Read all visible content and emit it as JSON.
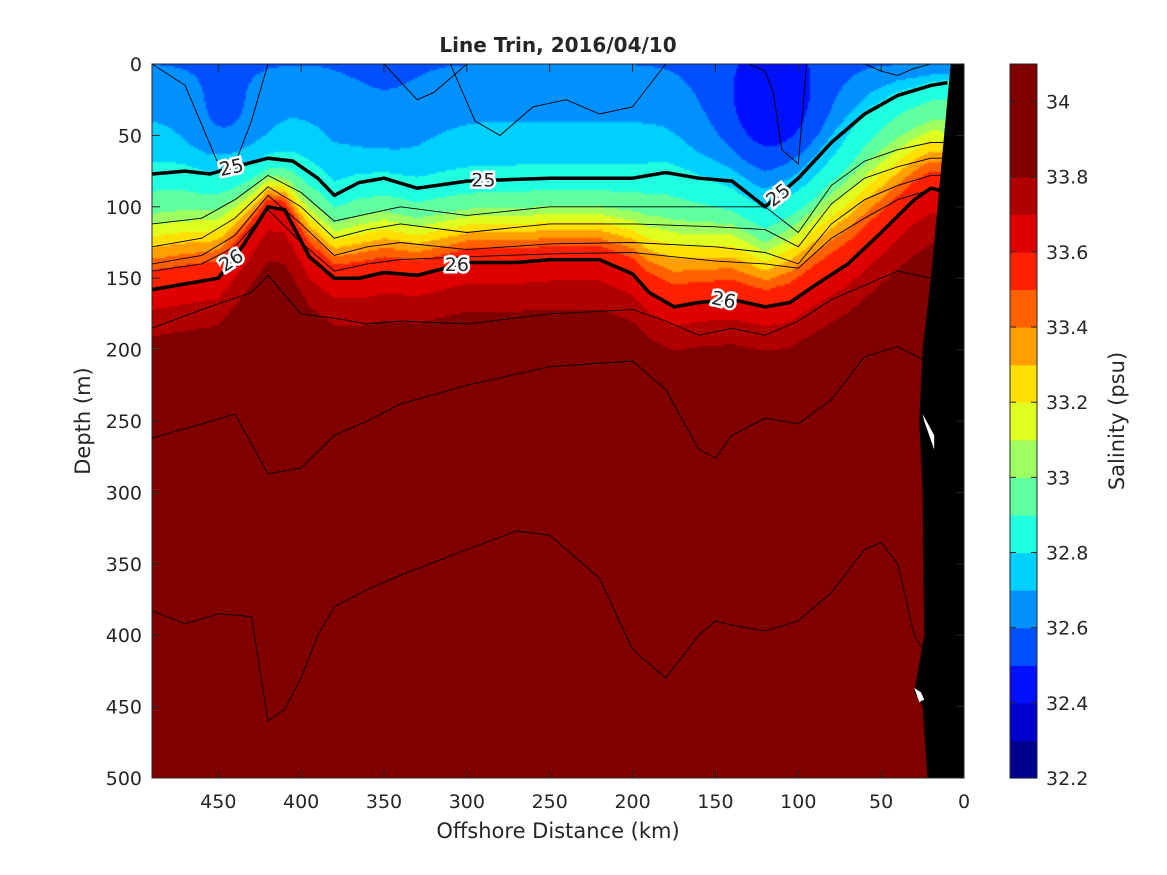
{
  "chart_data": {
    "type": "heatmap",
    "title": "Line Trin, 2016/04/10",
    "xlabel": "Offshore Distance (km)",
    "ylabel": "Depth (m)",
    "xlim": [
      490,
      0
    ],
    "ylim": [
      0,
      500
    ],
    "x_reversed": true,
    "y_reversed": true,
    "xticks": [
      450,
      400,
      350,
      300,
      250,
      200,
      150,
      100,
      50,
      0
    ],
    "yticks": [
      0,
      50,
      100,
      150,
      200,
      250,
      300,
      350,
      400,
      450,
      500
    ],
    "colorbar": {
      "label": "Salinity (psu)",
      "range": [
        32.2,
        34.1
      ],
      "ticks": [
        32.2,
        32.4,
        32.6,
        32.8,
        33,
        33.2,
        33.4,
        33.6,
        33.8,
        34
      ],
      "tick_labels": [
        "32.2",
        "32.4",
        "32.6",
        "32.8",
        "33",
        "33.2",
        "33.4",
        "33.6",
        "33.8",
        "34"
      ],
      "levels": [
        32.2,
        32.3,
        32.4,
        32.5,
        32.6,
        32.7,
        32.8,
        32.9,
        33.0,
        33.1,
        33.2,
        33.3,
        33.4,
        33.5,
        33.6,
        33.7,
        33.8,
        33.9,
        34.0,
        34.1
      ],
      "colors": [
        "#00008f",
        "#0000cf",
        "#0010ff",
        "#0050ff",
        "#0090ff",
        "#00d0ff",
        "#20ffdf",
        "#60ff9f",
        "#9fff60",
        "#dfff20",
        "#ffe000",
        "#ffa000",
        "#ff6000",
        "#ff2000",
        "#df0000",
        "#b00000",
        "#800000",
        "#800000",
        "#800000"
      ],
      "salinity_profile_depths": [
        0,
        60,
        100,
        120,
        140,
        170,
        200,
        260,
        340,
        500
      ],
      "salinity_profile_values": [
        32.6,
        32.75,
        32.95,
        33.25,
        33.55,
        33.75,
        33.88,
        33.96,
        34.02,
        34.06
      ]
    },
    "isopycnals": {
      "labeled_levels": [
        "25",
        "25",
        "25",
        "26",
        "26",
        "26"
      ],
      "sigma25": {
        "x": [
          490,
          470,
          455,
          440,
          420,
          405,
          390,
          380,
          365,
          350,
          330,
          300,
          250,
          200,
          180,
          160,
          140,
          120,
          100,
          80,
          60,
          40,
          20,
          10
        ],
        "y": [
          77,
          75,
          77,
          72,
          66,
          68,
          80,
          92,
          83,
          80,
          87,
          82,
          80,
          80,
          76,
          80,
          82,
          100,
          80,
          55,
          35,
          22,
          15,
          13
        ]
      },
      "sigma26": {
        "x": [
          490,
          465,
          450,
          435,
          420,
          410,
          395,
          380,
          365,
          350,
          330,
          300,
          270,
          250,
          220,
          200,
          190,
          175,
          160,
          140,
          120,
          105,
          90,
          70,
          50,
          30,
          20,
          10
        ],
        "y": [
          158,
          153,
          150,
          127,
          100,
          102,
          135,
          150,
          150,
          146,
          148,
          139,
          139,
          137,
          137,
          147,
          160,
          170,
          167,
          165,
          170,
          167,
          155,
          140,
          118,
          95,
          87,
          90
        ]
      },
      "thin_contours": [
        {
          "x": [
            490,
            460,
            440,
            420,
            400,
            380,
            360,
            340,
            300,
            250,
            200,
            150,
            120,
            100,
            80,
            60,
            40,
            20,
            10
          ],
          "y": [
            112,
            108,
            95,
            78,
            90,
            110,
            105,
            100,
            106,
            100,
            100,
            100,
            100,
            118,
            85,
            68,
            60,
            55,
            55
          ]
        },
        {
          "x": [
            490,
            460,
            440,
            420,
            400,
            380,
            360,
            340,
            300,
            250,
            200,
            150,
            120,
            100,
            80,
            60,
            40,
            20,
            10
          ],
          "y": [
            128,
            122,
            108,
            86,
            100,
            122,
            116,
            112,
            118,
            112,
            112,
            114,
            116,
            128,
            98,
            80,
            72,
            66,
            66
          ]
        },
        {
          "x": [
            490,
            460,
            440,
            420,
            400,
            380,
            360,
            340,
            300,
            250,
            200,
            150,
            120,
            100,
            80,
            60,
            40,
            20,
            10
          ],
          "y": [
            140,
            134,
            120,
            92,
            112,
            134,
            128,
            125,
            130,
            126,
            125,
            128,
            132,
            140,
            112,
            95,
            85,
            78,
            78
          ]
        },
        {
          "x": [
            490,
            460,
            440,
            420,
            400,
            380,
            360,
            340,
            300,
            250,
            200,
            150,
            120,
            100,
            80,
            60,
            40,
            20,
            10
          ],
          "y": [
            145,
            140,
            128,
            102,
            125,
            145,
            140,
            137,
            135,
            133,
            132,
            138,
            140,
            143,
            122,
            108,
            95,
            88,
            88
          ]
        },
        {
          "x": [
            490,
            460,
            430,
            420,
            400,
            380,
            360,
            340,
            300,
            250,
            200,
            180,
            160,
            140,
            120,
            100,
            80,
            60,
            40,
            20,
            10
          ],
          "y": [
            185,
            172,
            160,
            148,
            175,
            178,
            182,
            180,
            182,
            175,
            172,
            180,
            190,
            185,
            190,
            180,
            165,
            155,
            145,
            150,
            160
          ]
        },
        {
          "x": [
            490,
            460,
            440,
            420,
            400,
            380,
            360,
            340,
            300,
            250,
            200,
            180,
            160,
            150,
            140,
            120,
            100,
            80,
            60,
            40,
            20
          ],
          "y": [
            262,
            252,
            245,
            287,
            283,
            260,
            250,
            238,
            225,
            212,
            208,
            228,
            270,
            276,
            260,
            248,
            252,
            235,
            205,
            198,
            210
          ]
        },
        {
          "x": [
            490,
            470,
            450,
            430,
            420,
            410,
            400,
            390,
            380,
            360,
            340,
            300,
            270,
            250,
            220,
            200,
            180,
            160,
            150,
            140,
            120,
            100,
            80,
            70,
            60,
            50,
            40,
            30,
            20
          ],
          "y": [
            383,
            392,
            385,
            387,
            460,
            452,
            430,
            400,
            380,
            368,
            358,
            340,
            327,
            330,
            360,
            410,
            430,
            400,
            390,
            393,
            397,
            390,
            370,
            355,
            340,
            335,
            350,
            400,
            420
          ]
        },
        {
          "x": [
            100,
            80,
            70,
            60,
            50,
            40,
            30,
            20
          ],
          "y": [
            0,
            0,
            0,
            0,
            5,
            8,
            3,
            0
          ]
        },
        {
          "x": [
            130,
            120,
            115,
            110,
            100,
            95
          ],
          "y": [
            0,
            5,
            20,
            60,
            70,
            0
          ]
        },
        {
          "x": [
            490,
            470,
            450,
            440,
            430,
            420
          ],
          "y": [
            0,
            15,
            70,
            70,
            40,
            0
          ]
        },
        {
          "x": [
            350,
            330,
            320,
            300
          ],
          "y": [
            0,
            25,
            20,
            0
          ]
        },
        {
          "x": [
            310,
            295,
            280,
            260,
            240,
            220,
            200,
            180
          ],
          "y": [
            0,
            40,
            50,
            30,
            25,
            35,
            30,
            0
          ]
        }
      ]
    },
    "bathymetry_polygon": {
      "x": [
        0,
        8,
        12,
        16,
        20,
        25,
        27,
        25,
        24,
        30,
        25,
        22,
        0
      ],
      "y": [
        0,
        0,
        50,
        100,
        150,
        200,
        250,
        300,
        400,
        440,
        450,
        500,
        500
      ]
    },
    "blank_regions": [
      {
        "x": [
          25,
          18,
          18,
          24
        ],
        "y": [
          245,
          260,
          270,
          250
        ]
      },
      {
        "x": [
          30,
          26,
          24,
          27
        ],
        "y": [
          437,
          440,
          445,
          447
        ]
      }
    ]
  }
}
